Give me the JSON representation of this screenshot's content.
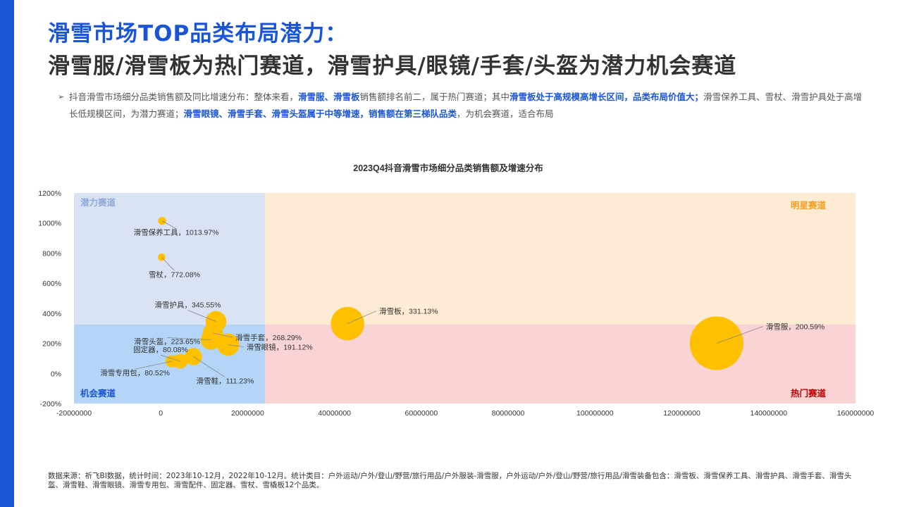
{
  "header": {
    "title_line1": "滑雪市场TOP品类布局潜力：",
    "title_line2": "滑雪服/滑雪板为热门赛道，滑雪护具/眼镜/手套/头盔为潜力机会赛道"
  },
  "summary": {
    "bullet": "➢",
    "segments": [
      {
        "text": "抖音滑雪市场细分品类销售额及同比增速分布：整体来看，",
        "hl": false
      },
      {
        "text": "滑雪服、滑雪板",
        "hl": true
      },
      {
        "text": "销售额排名前二，属于热门赛道；其中",
        "hl": false
      },
      {
        "text": "滑雪板处于高规模高增长区间，品类布局价值大；",
        "hl": true
      },
      {
        "text": "滑雪保养工具、雪杖、滑雪护具处于高增长低规模区间，为潜力赛道；",
        "hl": false
      },
      {
        "text": "滑雪眼镜、滑雪手套、滑雪头盔属于中等增速，销售额在第三梯队品类",
        "hl": true
      },
      {
        "text": "，为机会赛道，适合布局",
        "hl": false
      }
    ]
  },
  "colors": {
    "accent": "#1a55d6",
    "bubble": "#ffc000",
    "potential_bg": "#dae3f3",
    "star_bg": "#fdebd3",
    "opportunity_bg": "#b4d5f8",
    "hot_bg": "#fad4d4",
    "potential_text": "#8faadc",
    "star_text": "#f0a020",
    "opportunity_text": "#1a55d6",
    "hot_text": "#c00000"
  },
  "chart_data": {
    "type": "scatter",
    "title": "2023Q4抖音滑雪市场细分品类销售额及增速分布",
    "xlim": [
      -20000000,
      160000000
    ],
    "ylim": [
      -200,
      1200
    ],
    "x_ticks": [
      "-20000000",
      "0",
      "20000000",
      "40000000",
      "60000000",
      "80000000",
      "100000000",
      "120000000",
      "140000000",
      "160000000"
    ],
    "y_ticks": [
      "-200%",
      "0%",
      "200%",
      "400%",
      "600%",
      "800%",
      "1000%",
      "1200%"
    ],
    "x_divider": 24000000,
    "y_divider": 325,
    "quadrants": {
      "top_left": "潜力赛道",
      "top_right": "明星赛道",
      "bottom_left": "机会赛道",
      "bottom_right": "热门赛道"
    },
    "points": [
      {
        "name": "滑雪服",
        "x": 128000000,
        "y": 200.59,
        "label": "滑雪服，200.59%"
      },
      {
        "name": "滑雪板",
        "x": 43000000,
        "y": 331.13,
        "label": "滑雪板，331.13%"
      },
      {
        "name": "滑雪保养工具",
        "x": 300000,
        "y": 1013.97,
        "label": "滑雪保养工具，1013.97%"
      },
      {
        "name": "雪杖",
        "x": 200000,
        "y": 772.08,
        "label": "雪杖，772.08%"
      },
      {
        "name": "滑雪护具",
        "x": 12700000,
        "y": 345.55,
        "label": "滑雪护具，345.55%"
      },
      {
        "name": "滑雪手套",
        "x": 12000000,
        "y": 268.29,
        "label": "滑雪手套，268.29%"
      },
      {
        "name": "滑雪头盔",
        "x": 11500000,
        "y": 223.65,
        "label": "滑雪头盔，223.65%"
      },
      {
        "name": "滑雪眼镜",
        "x": 15500000,
        "y": 191.12,
        "label": "滑雪眼镜，191.12%"
      },
      {
        "name": "固定器",
        "x": 4500000,
        "y": 80.08,
        "label": "固定器，80.08%"
      },
      {
        "name": "滑雪专用包",
        "x": 2500000,
        "y": 80.52,
        "label": "滑雪专用包，80.52%"
      },
      {
        "name": "滑雪鞋",
        "x": 7500000,
        "y": 111.23,
        "label": "滑雪鞋，111.23%"
      }
    ]
  },
  "footnote": "数据来源：祈飞BI数据，统计时间：2023年10-12月，2022年10-12月。统计类目：户外运动/户外/登山/野营/旅行用品/户外服装-滑雪服，户外运动/户外/登山/野营/旅行用品/滑雪装备包含：滑雪板、滑雪保养工具、滑雪护具、滑雪手套、滑雪头盔、滑雪鞋、滑雪眼镜、滑雪专用包、滑雪配件、固定器、雪杖、雪橇板12个品类。"
}
